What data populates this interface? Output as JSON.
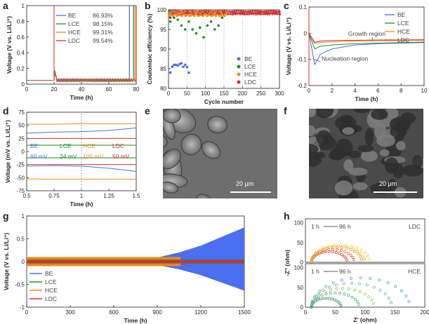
{
  "panels": {
    "a": {
      "label": "a"
    },
    "b": {
      "label": "b"
    },
    "c": {
      "label": "c"
    },
    "d": {
      "label": "d"
    },
    "e": {
      "label": "e",
      "scale": "20 μm"
    },
    "f": {
      "label": "f",
      "scale": "20 μm"
    },
    "g": {
      "label": "g"
    },
    "h": {
      "label": "h"
    }
  },
  "colors": {
    "BE": "#4a6ff0",
    "LCE": "#1e8f2a",
    "HCE": "#f08a1c",
    "LDC": "#d32f2f"
  },
  "chart_data": [
    {
      "id": "a",
      "type": "line",
      "xlabel": "Time (h)",
      "ylabel": "Voltage (V vs. Li/Li⁺)",
      "xlim": [
        0,
        80
      ],
      "ylim": [
        0,
        1.0
      ],
      "xticks": [
        0,
        20,
        40,
        60,
        80
      ],
      "yticks": [
        0,
        0.2,
        0.4,
        0.6,
        0.8,
        1.0
      ],
      "series": [
        {
          "name": "BE",
          "value_label": "86.93%",
          "cutoff_x": 75
        },
        {
          "name": "LCE",
          "value_label": "98.15%",
          "cutoff_x": 78
        },
        {
          "name": "HCE",
          "value_label": "99.31%",
          "cutoff_x": 79
        },
        {
          "name": "LDC",
          "value_label": "99.54%",
          "cutoff_x": 80
        }
      ],
      "legend": "top-right"
    },
    {
      "id": "b",
      "type": "scatter",
      "xlabel": "Cycle number",
      "ylabel": "Coulombic efficiency (%)",
      "xlim": [
        0,
        300
      ],
      "ylim": [
        80,
        100
      ],
      "xticks": [
        0,
        50,
        100,
        150,
        200,
        250,
        300
      ],
      "yticks": [
        80,
        85,
        90,
        95,
        100
      ],
      "top_labels": [
        "98",
        "88",
        "99.3",
        "99",
        "32",
        "99.38",
        "99.41",
        "99.46",
        "99.46"
      ],
      "series": [
        {
          "name": "BE",
          "x": [
            5,
            10,
            15,
            20,
            25,
            30,
            35,
            40,
            45,
            50,
            55
          ],
          "y": [
            84,
            85.5,
            86,
            86,
            85.8,
            86.2,
            86.4,
            85.5,
            86,
            85.4,
            84
          ]
        },
        {
          "name": "LCE",
          "x": [
            5,
            15,
            25,
            35,
            45,
            55,
            65,
            75,
            85,
            95,
            105,
            115,
            125,
            135,
            145
          ],
          "y": [
            97,
            98,
            97.5,
            96,
            95,
            97,
            95,
            94,
            95.5,
            93,
            96,
            97,
            95,
            96,
            98
          ]
        },
        {
          "name": "HCE",
          "x": [
            5,
            25,
            50,
            75,
            100,
            125,
            150
          ],
          "y": [
            99,
            99.1,
            99.2,
            99.1,
            99.3,
            99.2,
            99.3
          ]
        },
        {
          "name": "LDC",
          "x": [
            5,
            50,
            100,
            150,
            200,
            250,
            300
          ],
          "y": [
            98,
            99.3,
            99.4,
            99.4,
            99.4,
            99.5,
            99.5
          ]
        }
      ],
      "legend": "bottom-right"
    },
    {
      "id": "c",
      "type": "line",
      "xlabel": "Time (h)",
      "ylabel": "Voltage (V vs. Li/Li⁺)",
      "xlim": [
        0,
        10
      ],
      "ylim": [
        -0.2,
        0.1
      ],
      "xticks": [
        0,
        2,
        4,
        6,
        8,
        10
      ],
      "yticks": [
        -0.2,
        -0.1,
        0,
        0.1
      ],
      "annotations": [
        "Growth region",
        "Nucleation region"
      ],
      "series": [
        {
          "name": "BE",
          "x": [
            0,
            0.5,
            1,
            2,
            4,
            6,
            8,
            10
          ],
          "y": [
            0,
            -0.12,
            -0.08,
            -0.06,
            -0.045,
            -0.04,
            -0.038,
            -0.036
          ]
        },
        {
          "name": "LCE",
          "x": [
            0,
            0.5,
            1,
            2,
            4,
            6,
            8,
            10
          ],
          "y": [
            0,
            -0.06,
            -0.05,
            -0.045,
            -0.04,
            -0.038,
            -0.036,
            -0.034
          ]
        },
        {
          "name": "HCE",
          "x": [
            0,
            0.5,
            1,
            2,
            4,
            6,
            8,
            10
          ],
          "y": [
            0,
            -0.04,
            -0.035,
            -0.033,
            -0.03,
            -0.029,
            -0.028,
            -0.028
          ]
        },
        {
          "name": "LDC",
          "x": [
            0,
            0.5,
            1,
            2,
            4,
            6,
            8,
            10
          ],
          "y": [
            0,
            -0.035,
            -0.03,
            -0.028,
            -0.027,
            -0.026,
            -0.026,
            -0.025
          ]
        }
      ],
      "legend": "top-right"
    },
    {
      "id": "d",
      "type": "line",
      "xlabel": "Time (h)",
      "ylabel": "Voltage (mV vs. Li/Li⁺)",
      "xlim": [
        0.5,
        1.5
      ],
      "ylim": [
        -75,
        75
      ],
      "xticks": [
        0.5,
        0.75,
        1.0,
        1.25,
        1.5
      ],
      "yticks": [
        -75,
        -50,
        -25,
        0,
        25,
        50,
        75
      ],
      "series": [
        {
          "name": "BE",
          "overpotential": "60 mV",
          "x": [
            0.5,
            0.75,
            1.0,
            1.25,
            1.5
          ],
          "upper": [
            35,
            37,
            38,
            40,
            45
          ],
          "lower": [
            -28,
            -27,
            -28,
            -32,
            -38
          ]
        },
        {
          "name": "LCE",
          "overpotential": "24 mV",
          "x": [
            0.5,
            0.75,
            1.0,
            1.25,
            1.5
          ],
          "upper": [
            12,
            12,
            12,
            12,
            12
          ],
          "lower": [
            -12,
            -12,
            -12,
            -12,
            -12
          ]
        },
        {
          "name": "HCE",
          "overpotential": "105 mV",
          "x": [
            0.5,
            0.75,
            1.0,
            1.25,
            1.5
          ],
          "upper": [
            52,
            52,
            53,
            53,
            53
          ],
          "lower": [
            -52,
            -53,
            -53,
            -53,
            -53
          ]
        },
        {
          "name": "LDC",
          "overpotential": "50 mV",
          "x": [
            0.5,
            0.75,
            1.0,
            1.25,
            1.5
          ],
          "upper": [
            25,
            25,
            25,
            25,
            25
          ],
          "lower": [
            -25,
            -25,
            -25,
            -25,
            -25
          ]
        }
      ]
    },
    {
      "id": "g",
      "type": "line",
      "xlabel": "Time (h)",
      "ylabel": "Voltage (V vs. Li/Li⁺)",
      "xlim": [
        0,
        1500
      ],
      "ylim": [
        -1.0,
        1.0
      ],
      "xticks": [
        0,
        300,
        600,
        900,
        1200,
        1500
      ],
      "yticks": [
        -1.0,
        -0.5,
        0.0,
        0.5,
        1.0
      ],
      "series": [
        {
          "name": "BE",
          "x": [
            0,
            900,
            1050,
            1200,
            1350,
            1500
          ],
          "amplitude": [
            0.08,
            0.09,
            0.2,
            0.35,
            0.55,
            0.75
          ]
        },
        {
          "name": "LCE",
          "x": [
            0,
            1500
          ],
          "amplitude": [
            0.05,
            0.05
          ]
        },
        {
          "name": "HCE",
          "x": [
            0,
            1050,
            1100
          ],
          "amplitude": [
            0.1,
            0.1,
            0
          ]
        },
        {
          "name": "LDC",
          "x": [
            0,
            1500
          ],
          "amplitude": [
            0.03,
            0.03
          ]
        }
      ],
      "legend": "bottom-left"
    },
    {
      "id": "h",
      "type": "scatter",
      "xlabel": "Z' (ohm)",
      "ylabel": "-Z'' (ohm)",
      "xlim": [
        0,
        200
      ],
      "xticks": [
        0,
        50,
        100,
        150,
        200
      ],
      "yticks": [
        0,
        50,
        100
      ],
      "subpanels": [
        {
          "label": "LDC",
          "time_start": "1 h",
          "time_end": "96 h",
          "semicircle_end_x": [
            70,
            82,
            95,
            100,
            108
          ]
        },
        {
          "label": "HCE",
          "time_start": "1 h",
          "time_end": "96 h",
          "semicircle_end_x": [
            60,
            90,
            115,
            145,
            175
          ]
        }
      ]
    }
  ]
}
